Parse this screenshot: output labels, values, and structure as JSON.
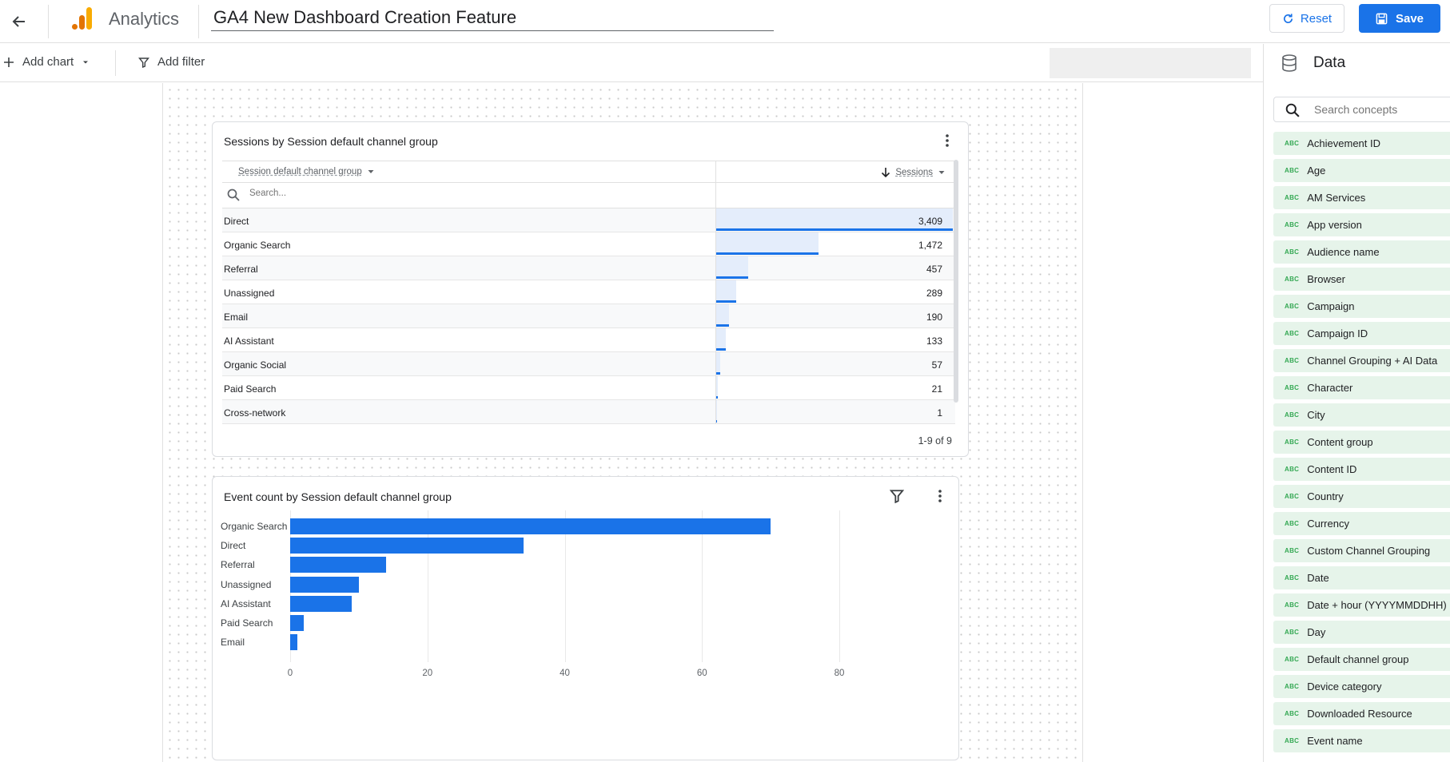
{
  "header": {
    "app_name": "Analytics",
    "report_title": "GA4 New Dashboard Creation Feature",
    "reset_label": "Reset",
    "save_label": "Save"
  },
  "toolbar": {
    "add_chart_label": "Add chart",
    "add_filter_label": "Add filter"
  },
  "table_card": {
    "title": "Sessions by Session default channel group",
    "dimension_header": "Session default channel group",
    "metric_header": "Sessions",
    "search_placeholder": "Search...",
    "pagination": "1-9 of 9",
    "rows": [
      {
        "label": "Direct",
        "value": "3,409",
        "num": 3409
      },
      {
        "label": "Organic Search",
        "value": "1,472",
        "num": 1472
      },
      {
        "label": "Referral",
        "value": "457",
        "num": 457
      },
      {
        "label": "Unassigned",
        "value": "289",
        "num": 289
      },
      {
        "label": "Email",
        "value": "190",
        "num": 190
      },
      {
        "label": "AI Assistant",
        "value": "133",
        "num": 133
      },
      {
        "label": "Organic Social",
        "value": "57",
        "num": 57
      },
      {
        "label": "Paid Search",
        "value": "21",
        "num": 21
      },
      {
        "label": "Cross-network",
        "value": "1",
        "num": 1
      }
    ]
  },
  "bar_card": {
    "title": "Event count by Session default channel group"
  },
  "chart_data": {
    "type": "bar",
    "orientation": "horizontal",
    "title": "Event count by Session default channel group",
    "categories": [
      "Organic Search",
      "Direct",
      "Referral",
      "Unassigned",
      "AI Assistant",
      "Paid Search",
      "Email"
    ],
    "values": [
      70,
      34,
      14,
      10,
      9,
      2,
      1
    ],
    "xlim": [
      0,
      80
    ],
    "xticks": [
      "0",
      "20",
      "40",
      "60",
      "80"
    ],
    "grid": true,
    "color": "#1a73e8"
  },
  "data_panel": {
    "title": "Data",
    "search_placeholder": "Search concepts",
    "type_badge": "ABC",
    "fields": [
      "Achievement ID",
      "Age",
      "AM Services",
      "App version",
      "Audience name",
      "Browser",
      "Campaign",
      "Campaign ID",
      "Channel Grouping + AI Data",
      "Character",
      "City",
      "Content group",
      "Content ID",
      "Country",
      "Currency",
      "Custom Channel Grouping",
      "Date",
      "Date + hour (YYYYMMDDHH)",
      "Day",
      "Default channel group",
      "Device category",
      "Downloaded Resource",
      "Event name"
    ]
  },
  "colors": {
    "accent": "#1a73e8",
    "bar_light": "#e4edfb",
    "field_bg": "#e6f4ea",
    "field_badge": "#34a853"
  }
}
